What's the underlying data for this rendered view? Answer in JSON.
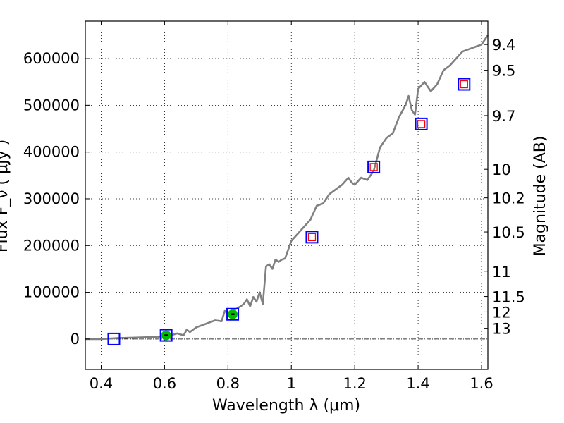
{
  "chart_data": {
    "type": "line",
    "xlabel": "Wavelength  λ (μm)",
    "ylabel": "Flux  F_ν  ( μJy )",
    "y2label": "Magnitude (AB)",
    "xlim": [
      0.35,
      1.62
    ],
    "ylim": [
      -65000,
      680000
    ],
    "grid": true,
    "x_ticks": [
      0.4,
      0.6,
      0.8,
      1.0,
      1.2,
      1.4,
      1.6
    ],
    "x_tick_labels": [
      "0.4",
      "0.6",
      "0.8",
      "1",
      "1.2",
      "1.4",
      "1.6"
    ],
    "y_ticks": [
      0,
      100000,
      200000,
      300000,
      400000,
      500000,
      600000
    ],
    "y_tick_labels": [
      "0",
      "100000",
      "200000",
      "300000",
      "400000",
      "500000",
      "600000"
    ],
    "mag_ticks": [
      {
        "label": "9.4",
        "flux": 630000
      },
      {
        "label": "9.5",
        "flux": 575000
      },
      {
        "label": "9.7",
        "flux": 478000
      },
      {
        "label": "10",
        "flux": 363000
      },
      {
        "label": "10.2",
        "flux": 302000
      },
      {
        "label": "10.5",
        "flux": 229000
      },
      {
        "label": "11",
        "flux": 145000
      },
      {
        "label": "11.5",
        "flux": 91000
      },
      {
        "label": "12",
        "flux": 58000
      },
      {
        "label": "13",
        "flux": 23000
      }
    ],
    "series": [
      {
        "kind": "line",
        "color": "#808080",
        "x": [
          0.35,
          0.4,
          0.45,
          0.5,
          0.55,
          0.58,
          0.6,
          0.62,
          0.64,
          0.66,
          0.67,
          0.68,
          0.7,
          0.72,
          0.74,
          0.76,
          0.78,
          0.79,
          0.8,
          0.82,
          0.84,
          0.85,
          0.86,
          0.87,
          0.88,
          0.89,
          0.9,
          0.91,
          0.92,
          0.93,
          0.94,
          0.95,
          0.96,
          0.97,
          0.98,
          1.0,
          1.02,
          1.04,
          1.06,
          1.08,
          1.1,
          1.12,
          1.14,
          1.16,
          1.18,
          1.19,
          1.2,
          1.22,
          1.24,
          1.26,
          1.28,
          1.3,
          1.32,
          1.34,
          1.36,
          1.37,
          1.38,
          1.39,
          1.4,
          1.42,
          1.44,
          1.46,
          1.48,
          1.5,
          1.52,
          1.54,
          1.56,
          1.58,
          1.6,
          1.61,
          1.62
        ],
        "y": [
          0,
          0,
          2000,
          3000,
          4000,
          5000,
          6000,
          8000,
          12000,
          8000,
          20000,
          15000,
          25000,
          30000,
          35000,
          40000,
          38000,
          60000,
          55000,
          62000,
          70000,
          75000,
          85000,
          70000,
          90000,
          80000,
          100000,
          75000,
          155000,
          160000,
          150000,
          170000,
          165000,
          170000,
          172000,
          210000,
          225000,
          240000,
          255000,
          285000,
          290000,
          310000,
          320000,
          330000,
          345000,
          335000,
          330000,
          345000,
          340000,
          360000,
          410000,
          430000,
          440000,
          475000,
          500000,
          520000,
          490000,
          480000,
          535000,
          550000,
          530000,
          545000,
          575000,
          585000,
          600000,
          615000,
          620000,
          625000,
          630000,
          640000,
          650000
        ]
      },
      {
        "kind": "blue_square",
        "color": "#0000ff",
        "x": [
          0.44,
          0.605,
          0.815,
          1.065,
          1.26,
          1.41,
          1.545
        ],
        "y": [
          0,
          8000,
          53000,
          218000,
          368000,
          460000,
          545000
        ]
      },
      {
        "kind": "red_square",
        "color": "#ff0000",
        "x": [
          1.065,
          1.26,
          1.41,
          1.545
        ],
        "y": [
          218000,
          368000,
          460000,
          545000
        ]
      },
      {
        "kind": "green_dot",
        "color": "#00bb00",
        "x": [
          0.605,
          0.815
        ],
        "y": [
          8000,
          53000
        ]
      }
    ]
  }
}
